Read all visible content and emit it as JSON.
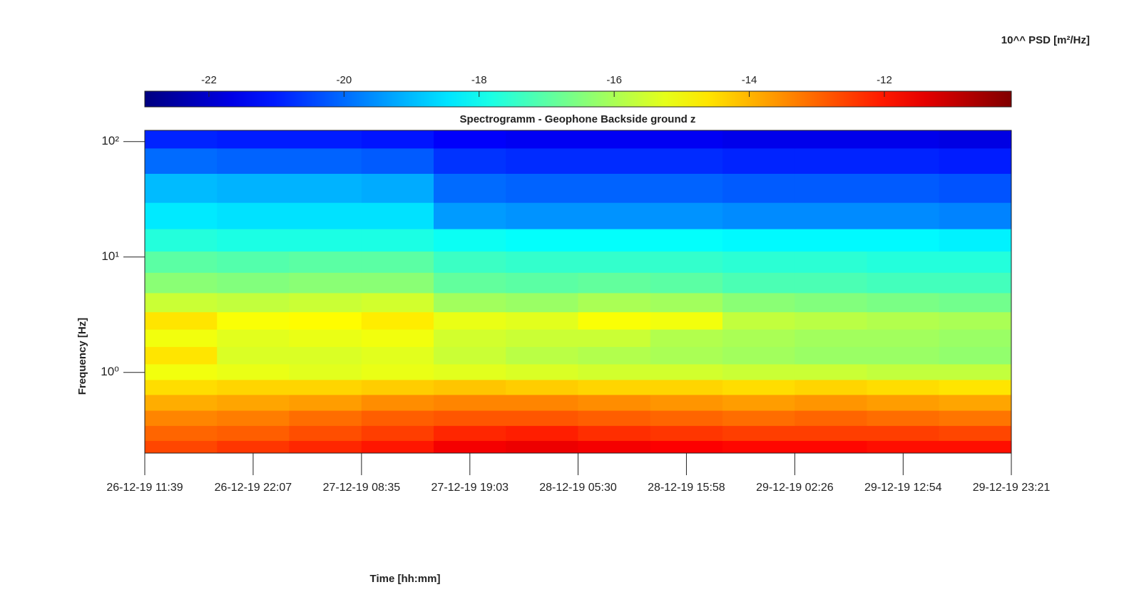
{
  "chart_data": {
    "type": "heatmap",
    "title": "Spectrogramm - Geophone Backside ground z",
    "x_label": "Time [hh:mm]",
    "y_label": "Frequency [Hz]",
    "colorbar_label": "10^^ PSD [m²/Hz]",
    "colormap": "jet",
    "clim": [
      -22.95,
      -10.12
    ],
    "colorbar_ticks": [
      -22,
      -20,
      -18,
      -16,
      -14,
      -12
    ],
    "xlim": [
      "2019-12-26T11:39",
      "2019-12-29T23:21"
    ],
    "xticks": [
      {
        "value": "2019-12-26T11:39",
        "label": "26-12-19 11:39"
      },
      {
        "value": "2019-12-26T22:07",
        "label": "26-12-19 22:07"
      },
      {
        "value": "2019-12-27T08:35",
        "label": "27-12-19 08:35"
      },
      {
        "value": "2019-12-27T19:03",
        "label": "27-12-19 19:03"
      },
      {
        "value": "2019-12-28T05:30",
        "label": "28-12-19 05:30"
      },
      {
        "value": "2019-12-28T15:58",
        "label": "28-12-19 15:58"
      },
      {
        "value": "2019-12-29T02:26",
        "label": "29-12-19 02:26"
      },
      {
        "value": "2019-12-29T12:54",
        "label": "29-12-19 12:54"
      },
      {
        "value": "2019-12-29T23:21",
        "label": "29-12-19 23:21"
      }
    ],
    "y_scale": "log",
    "ylim": [
      0.2,
      125
    ],
    "yticks": [
      {
        "value": 1,
        "label": "10⁰"
      },
      {
        "value": 10,
        "label": "10¹"
      },
      {
        "value": 100,
        "label": "10²"
      }
    ],
    "y": [
      0.22,
      0.3,
      0.4,
      0.55,
      0.75,
      1,
      1.4,
      2,
      2.8,
      4,
      6,
      9,
      14,
      22,
      40,
      70,
      110
    ],
    "z": [
      [
        -12.6,
        -12.4,
        -12.2,
        -12.0,
        -11.6,
        -11.5,
        -11.6,
        -11.7,
        -11.8,
        -11.8,
        -11.9,
        -11.9
      ],
      [
        -13.0,
        -12.9,
        -12.7,
        -12.5,
        -12.2,
        -12.1,
        -12.3,
        -12.4,
        -12.5,
        -12.5,
        -12.5,
        -12.6
      ],
      [
        -13.4,
        -13.3,
        -13.1,
        -12.9,
        -12.8,
        -12.8,
        -12.9,
        -13.0,
        -13.1,
        -13.0,
        -13.1,
        -13.2
      ],
      [
        -13.9,
        -13.8,
        -13.7,
        -13.5,
        -13.4,
        -13.4,
        -13.5,
        -13.6,
        -13.7,
        -13.6,
        -13.7,
        -13.8
      ],
      [
        -14.5,
        -14.4,
        -14.4,
        -14.3,
        -14.2,
        -14.3,
        -14.4,
        -14.4,
        -14.5,
        -14.4,
        -14.5,
        -14.6
      ],
      [
        -15.1,
        -15.2,
        -15.3,
        -15.2,
        -15.3,
        -15.4,
        -15.5,
        -15.5,
        -15.6,
        -15.6,
        -15.7,
        -15.7
      ],
      [
        -14.6,
        -15.4,
        -15.4,
        -15.3,
        -15.6,
        -15.8,
        -15.9,
        -16.0,
        -16.1,
        -16.2,
        -16.2,
        -16.3
      ],
      [
        -15.1,
        -15.3,
        -15.2,
        -15.1,
        -15.5,
        -15.6,
        -15.6,
        -15.9,
        -16.0,
        -16.1,
        -16.1,
        -16.2
      ],
      [
        -14.6,
        -15.0,
        -14.9,
        -14.7,
        -15.2,
        -15.3,
        -15.0,
        -15.1,
        -15.7,
        -15.8,
        -15.9,
        -16.0
      ],
      [
        -15.6,
        -15.7,
        -15.6,
        -15.5,
        -16.1,
        -16.2,
        -16.0,
        -16.1,
        -16.4,
        -16.5,
        -16.6,
        -16.7
      ],
      [
        -16.4,
        -16.5,
        -16.4,
        -16.4,
        -16.9,
        -17.0,
        -16.9,
        -17.0,
        -17.2,
        -17.2,
        -17.3,
        -17.3
      ],
      [
        -17.0,
        -17.1,
        -17.0,
        -17.0,
        -17.4,
        -17.5,
        -17.5,
        -17.5,
        -17.6,
        -17.6,
        -17.7,
        -17.7
      ],
      [
        -17.7,
        -17.8,
        -17.8,
        -17.8,
        -18.0,
        -18.1,
        -18.1,
        -18.1,
        -18.2,
        -18.2,
        -18.2,
        -18.3
      ],
      [
        -18.4,
        -18.5,
        -18.5,
        -18.5,
        -19.4,
        -19.5,
        -19.5,
        -19.5,
        -19.6,
        -19.6,
        -19.6,
        -19.7
      ],
      [
        -19.0,
        -19.1,
        -19.1,
        -19.2,
        -20.0,
        -20.1,
        -20.1,
        -20.1,
        -20.2,
        -20.2,
        -20.2,
        -20.3
      ],
      [
        -20.0,
        -20.1,
        -20.1,
        -20.2,
        -20.7,
        -20.8,
        -20.8,
        -20.8,
        -20.9,
        -20.9,
        -20.9,
        -21.0
      ],
      [
        -20.9,
        -21.0,
        -21.0,
        -21.1,
        -21.4,
        -21.5,
        -21.5,
        -21.5,
        -21.6,
        -21.6,
        -21.6,
        -21.7
      ]
    ]
  }
}
